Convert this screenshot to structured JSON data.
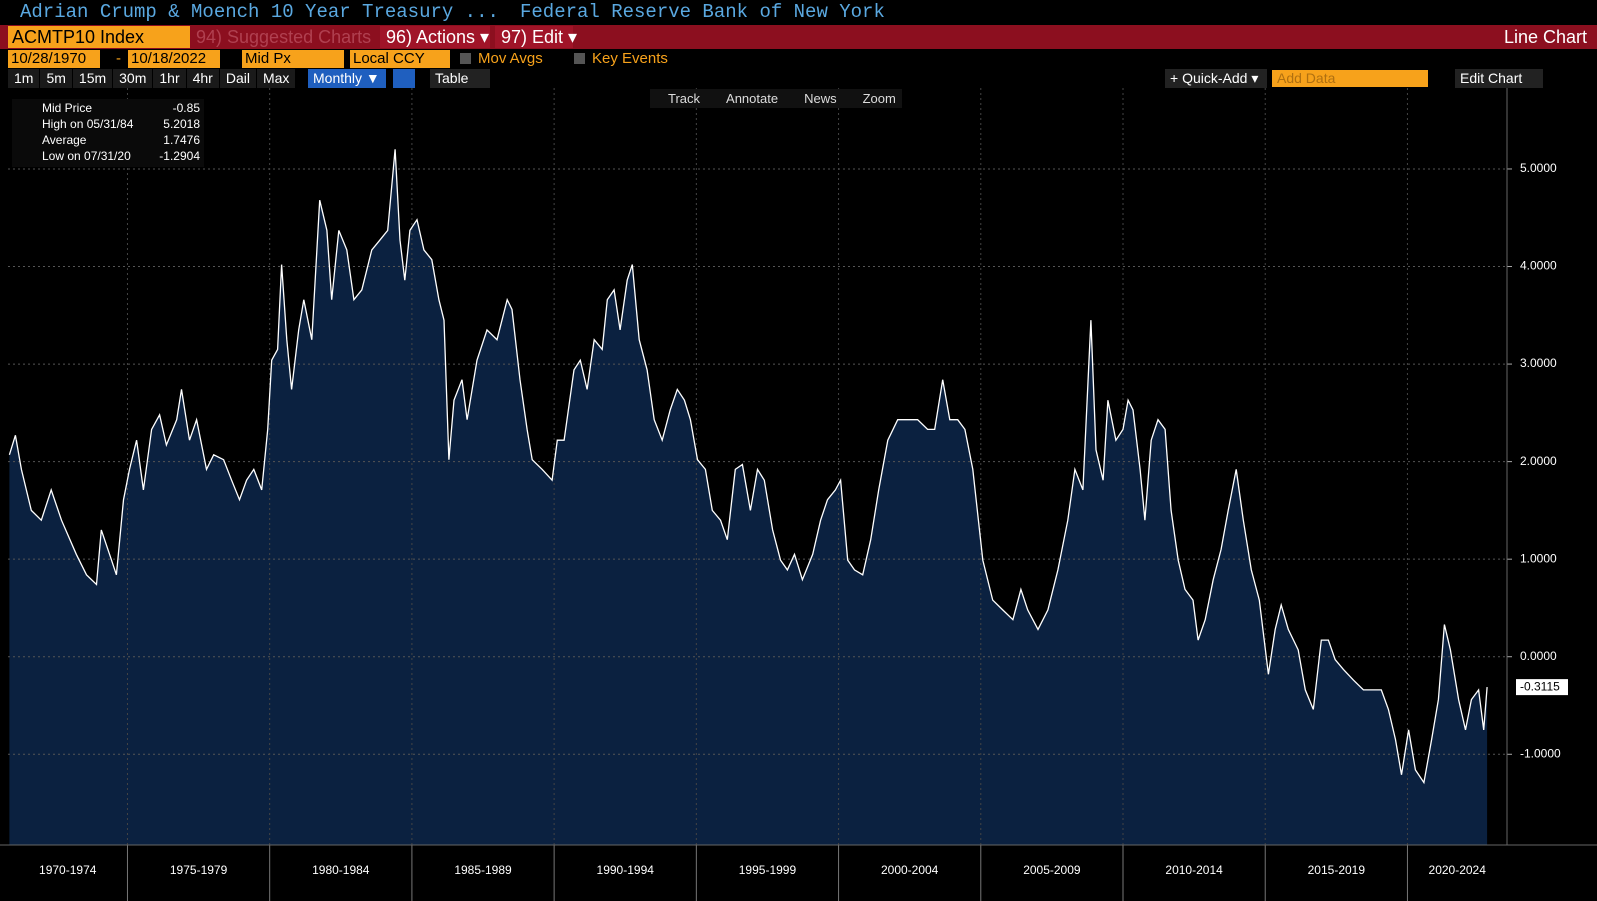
{
  "ui": {
    "title": "Adrian Crump & Moench 10 Year Treasury ...",
    "source": "Federal Reserve Bank of New York",
    "ticker": "ACMTP10 Index",
    "suggested": "94) Suggested Charts",
    "actions": "96) Actions ▾",
    "edit": "97) Edit ▾",
    "chart_kind": "Line Chart",
    "start_date": "10/28/1970",
    "date_sep": "-",
    "end_date": "10/18/2022",
    "field": "Mid Px",
    "currency": "Local CCY",
    "mov_avgs": "Mov Avgs",
    "key_events": "Key Events",
    "periods": [
      "1m",
      "5m",
      "15m",
      "30m",
      "1hr",
      "4hr",
      "Dail",
      "Max"
    ],
    "frequency": "Monthly ▼",
    "table": "Table",
    "quick_add": "+ Quick-Add ▾",
    "add_data": "Add Data",
    "edit_chart": "Edit Chart",
    "tools": [
      "Track",
      "Annotate",
      "News",
      "Zoom"
    ]
  },
  "chart_data": {
    "type": "area",
    "series": [
      {
        "name": "Mid Price",
        "color": "#ffffff",
        "fill": "#0b2140",
        "values": [
          2.07,
          2.27,
          1.92,
          1.5,
          1.4,
          1.71,
          1.4,
          1.05,
          0.84,
          0.74,
          1.3,
          0.99,
          0.84,
          1.61,
          1.92,
          2.22,
          1.71,
          2.33,
          2.48,
          2.17,
          2.43,
          2.74,
          2.22,
          2.43,
          1.92,
          2.07,
          2.02,
          1.81,
          1.61,
          1.81,
          1.92,
          1.71,
          2.33,
          3.04,
          3.15,
          4.02,
          3.25,
          2.74,
          3.35,
          3.66,
          3.25,
          4.68,
          4.37,
          3.66,
          4.37,
          4.17,
          3.66,
          3.76,
          4.17,
          4.27,
          4.37,
          5.2018,
          4.27,
          3.86,
          4.37,
          4.48,
          4.17,
          4.07,
          3.66,
          3.45,
          2.02,
          2.63,
          2.84,
          2.43,
          3.04,
          3.35,
          3.25,
          3.66,
          3.56,
          2.84,
          2.33,
          2.02,
          1.92,
          1.81,
          2.22,
          2.22,
          2.94,
          3.04,
          2.74,
          3.25,
          3.15,
          3.66,
          3.76,
          3.35,
          3.86,
          4.02,
          3.25,
          2.94,
          2.43,
          2.22,
          2.53,
          2.74,
          2.63,
          2.43,
          2.02,
          1.92,
          1.5,
          1.4,
          1.2,
          1.92,
          1.97,
          1.5,
          1.92,
          1.81,
          1.3,
          0.99,
          0.89,
          1.05,
          0.79,
          1.05,
          1.4,
          1.61,
          1.71,
          1.81,
          0.99,
          0.89,
          0.84,
          1.2,
          1.71,
          2.22,
          2.43,
          2.43,
          2.43,
          2.33,
          2.33,
          2.84,
          2.43,
          2.43,
          2.33,
          1.92,
          0.99,
          0.58,
          0.48,
          0.38,
          0.69,
          0.48,
          0.28,
          0.48,
          0.89,
          1.4,
          1.92,
          1.71,
          3.45,
          2.12,
          1.81,
          2.63,
          2.22,
          2.33,
          2.63,
          2.53,
          1.92,
          1.4,
          2.22,
          2.43,
          2.33,
          1.5,
          0.99,
          0.69,
          0.58,
          0.17,
          0.38,
          0.79,
          1.1,
          1.5,
          1.92,
          1.4,
          0.89,
          0.58,
          -0.18,
          0.28,
          0.53,
          0.28,
          0.07,
          -0.34,
          -0.54,
          0.17,
          0.17,
          -0.03,
          -0.13,
          -0.24,
          -0.34,
          -0.34,
          -0.34,
          -0.54,
          -0.85,
          -1.21,
          -0.75,
          -1.16,
          -1.2904,
          -0.85,
          -0.44,
          0.33,
          0.07,
          -0.44,
          -0.75,
          -0.44,
          -0.34,
          -0.75,
          -0.3115
        ]
      }
    ],
    "x": [
      1970.85,
      1971.06,
      1971.27,
      1971.62,
      1971.97,
      1972.32,
      1972.68,
      1973.2,
      1973.56,
      1973.91,
      1974.08,
      1974.44,
      1974.61,
      1974.86,
      1975.07,
      1975.32,
      1975.56,
      1975.85,
      1976.13,
      1976.37,
      1976.73,
      1976.9,
      1977.18,
      1977.43,
      1977.78,
      1978.03,
      1978.38,
      1978.66,
      1978.94,
      1979.19,
      1979.44,
      1979.72,
      1979.93,
      1980.07,
      1980.28,
      1980.42,
      1980.6,
      1980.77,
      1981.02,
      1981.2,
      1981.48,
      1981.76,
      1982.01,
      1982.18,
      1982.43,
      1982.71,
      1982.96,
      1983.24,
      1983.59,
      1983.87,
      1984.15,
      1984.41,
      1984.58,
      1984.75,
      1984.93,
      1985.18,
      1985.42,
      1985.7,
      1985.95,
      1986.13,
      1986.3,
      1986.48,
      1986.76,
      1986.94,
      1987.29,
      1987.64,
      1987.99,
      1988.35,
      1988.52,
      1988.8,
      1989.05,
      1989.23,
      1989.58,
      1989.93,
      1990.11,
      1990.35,
      1990.7,
      1990.92,
      1991.16,
      1991.41,
      1991.69,
      1991.87,
      1992.11,
      1992.32,
      1992.57,
      1992.75,
      1992.99,
      1993.27,
      1993.52,
      1993.8,
      1994.08,
      1994.33,
      1994.58,
      1994.79,
      1995.04,
      1995.32,
      1995.56,
      1995.85,
      1996.09,
      1996.37,
      1996.62,
      1996.9,
      1997.15,
      1997.39,
      1997.68,
      1997.96,
      1998.2,
      1998.45,
      1998.73,
      1999.09,
      1999.37,
      1999.61,
      1999.89,
      2000.07,
      2000.32,
      2000.56,
      2000.85,
      2001.13,
      2001.41,
      2001.73,
      2002.08,
      2002.43,
      2002.78,
      2003.13,
      2003.38,
      2003.66,
      2003.91,
      2004.19,
      2004.44,
      2004.72,
      2005.07,
      2005.42,
      2005.77,
      2006.13,
      2006.41,
      2006.65,
      2007.01,
      2007.36,
      2007.71,
      2008.06,
      2008.31,
      2008.59,
      2008.87,
      2009.05,
      2009.3,
      2009.47,
      2009.75,
      2010.0,
      2010.18,
      2010.35,
      2010.6,
      2010.77,
      2010.99,
      2011.23,
      2011.48,
      2011.69,
      2011.94,
      2012.18,
      2012.46,
      2012.64,
      2012.89,
      2013.17,
      2013.45,
      2013.7,
      2013.98,
      2014.23,
      2014.51,
      2014.79,
      2015.11,
      2015.35,
      2015.56,
      2015.81,
      2016.16,
      2016.41,
      2016.69,
      2016.97,
      2017.22,
      2017.46,
      2017.75,
      2018.1,
      2018.45,
      2018.8,
      2019.08,
      2019.33,
      2019.58,
      2019.79,
      2020.04,
      2020.28,
      2020.58,
      2020.85,
      2021.09,
      2021.3,
      2021.51,
      2021.8,
      2022.04,
      2022.25,
      2022.5,
      2022.68,
      2022.8
    ],
    "xlim": [
      1970.8,
      2023.5
    ],
    "xticks": [
      1975,
      1980,
      1985,
      1990,
      1995,
      2000,
      2005,
      2010,
      2015,
      2020
    ],
    "categories": [
      "1970-1974",
      "1975-1979",
      "1980-1984",
      "1985-1989",
      "1990-1994",
      "1995-1999",
      "2000-2004",
      "2005-2009",
      "2010-2014",
      "2015-2019",
      "2020-2024"
    ],
    "ylim": [
      -1.93,
      5.83
    ],
    "yticks": [
      {
        "value": -1,
        "label": "-1.0000"
      },
      {
        "value": 0,
        "label": "0.0000"
      },
      {
        "value": 1,
        "label": "1.0000"
      },
      {
        "value": 2,
        "label": "2.0000"
      },
      {
        "value": 3,
        "label": "3.0000"
      },
      {
        "value": 4,
        "label": "4.0000"
      },
      {
        "value": 5,
        "label": "5.0000"
      }
    ],
    "grid": true,
    "stats": [
      {
        "label": "High on 05/31/84",
        "value": 5.2018
      },
      {
        "label": "Average",
        "value": 1.7476
      },
      {
        "label": "Low on 07/31/20",
        "value": -1.2904
      }
    ]
  }
}
